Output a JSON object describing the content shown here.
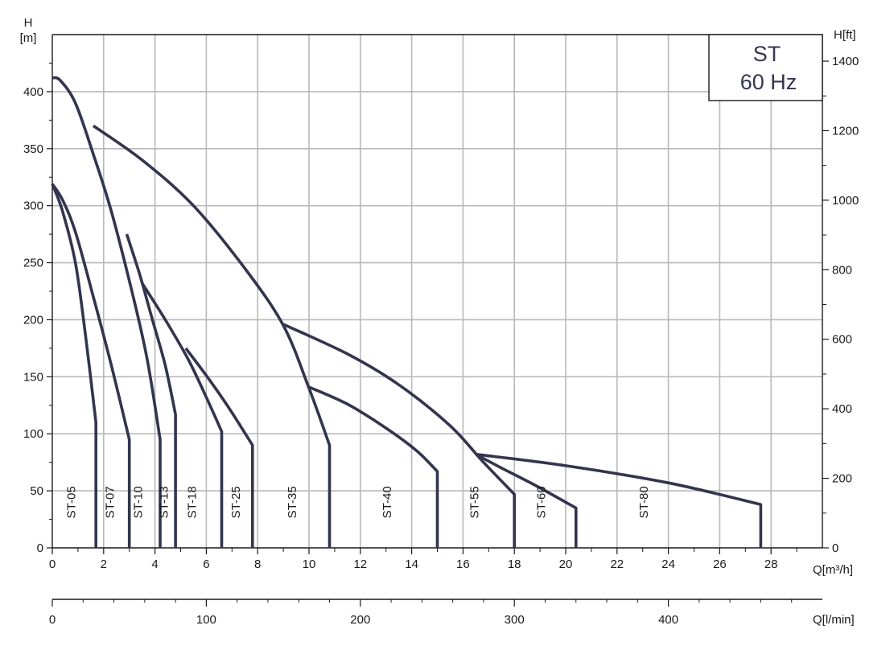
{
  "chart_data": {
    "type": "line",
    "title_box": {
      "line1": "ST",
      "line2": "60 Hz"
    },
    "left_axis": {
      "label_top": "H",
      "label_bottom": "[m]",
      "ticks": [
        0,
        50,
        100,
        150,
        200,
        250,
        300,
        350,
        400
      ],
      "ylim": [
        0,
        450
      ]
    },
    "right_axis": {
      "label": "H[ft]",
      "ticks": [
        0,
        200,
        400,
        600,
        800,
        1000,
        1200,
        1400
      ]
    },
    "x_axis": {
      "label": "Q[m³/h]",
      "ticks": [
        0,
        2,
        4,
        6,
        8,
        10,
        12,
        14,
        16,
        18,
        20,
        22,
        24,
        26,
        28
      ],
      "xlim": [
        0,
        30
      ]
    },
    "secondary_x_axis": {
      "label": "Q[l/min]",
      "ticks": [
        0,
        100,
        200,
        300,
        400
      ],
      "xlim": [
        0,
        500
      ]
    },
    "grid": true,
    "line_color": "#33354f",
    "series": [
      {
        "name": "ST-05",
        "label_x": 0.9,
        "points": [
          [
            0,
            319
          ],
          [
            0.4,
            295
          ],
          [
            0.9,
            250
          ],
          [
            1.3,
            185
          ],
          [
            1.7,
            110
          ],
          [
            1.7,
            0
          ]
        ]
      },
      {
        "name": "ST-07",
        "label_x": 2.4,
        "points": [
          [
            0,
            319
          ],
          [
            0.4,
            305
          ],
          [
            0.9,
            277
          ],
          [
            1.6,
            220
          ],
          [
            2.3,
            160
          ],
          [
            3.0,
            95
          ],
          [
            3.0,
            0
          ]
        ]
      },
      {
        "name": "ST-10",
        "label_x": 3.5,
        "points": [
          [
            0,
            412
          ],
          [
            0.3,
            410
          ],
          [
            0.9,
            390
          ],
          [
            1.6,
            345
          ],
          [
            2.3,
            295
          ],
          [
            3.1,
            225
          ],
          [
            3.7,
            165
          ],
          [
            4.2,
            95
          ],
          [
            4.2,
            0
          ]
        ]
      },
      {
        "name": "ST-13",
        "label_x": 4.5,
        "points": [
          [
            2.9,
            275
          ],
          [
            3.4,
            240
          ],
          [
            3.9,
            200
          ],
          [
            4.4,
            160
          ],
          [
            4.8,
            117
          ],
          [
            4.8,
            0
          ]
        ]
      },
      {
        "name": "ST-18",
        "label_x": 5.6,
        "points": [
          [
            3.5,
            232
          ],
          [
            4.4,
            200
          ],
          [
            5.3,
            165
          ],
          [
            6.0,
            132
          ],
          [
            6.6,
            102
          ],
          [
            6.6,
            0
          ]
        ]
      },
      {
        "name": "ST-25",
        "label_x": 7.3,
        "points": [
          [
            5.2,
            175
          ],
          [
            6.1,
            148
          ],
          [
            6.9,
            122
          ],
          [
            7.8,
            90
          ],
          [
            7.8,
            0
          ]
        ]
      },
      {
        "name": "ST-35",
        "label_x": 9.5,
        "points": [
          [
            1.6,
            370
          ],
          [
            3.5,
            340
          ],
          [
            5.5,
            300
          ],
          [
            7.5,
            245
          ],
          [
            9.0,
            195
          ],
          [
            10.0,
            140
          ],
          [
            10.8,
            90
          ],
          [
            10.8,
            0
          ]
        ]
      },
      {
        "name": "ST-40",
        "label_x": 13.2,
        "points": [
          [
            10.0,
            141
          ],
          [
            11.5,
            126
          ],
          [
            13.0,
            105
          ],
          [
            14.2,
            85
          ],
          [
            15.0,
            67
          ],
          [
            15.0,
            0
          ]
        ]
      },
      {
        "name": "ST-55",
        "label_x": 16.6,
        "points": [
          [
            9.0,
            196
          ],
          [
            11.5,
            170
          ],
          [
            13.5,
            143
          ],
          [
            15.5,
            107
          ],
          [
            16.8,
            75
          ],
          [
            18.0,
            47
          ],
          [
            18.0,
            0
          ]
        ]
      },
      {
        "name": "ST-60",
        "label_x": 19.2,
        "points": [
          [
            16.5,
            82
          ],
          [
            17.5,
            70
          ],
          [
            18.8,
            55
          ],
          [
            20.4,
            35
          ],
          [
            20.4,
            0
          ]
        ]
      },
      {
        "name": "ST-80",
        "label_x": 23.2,
        "points": [
          [
            16.5,
            82
          ],
          [
            20.0,
            72
          ],
          [
            24.0,
            57
          ],
          [
            27.6,
            38
          ],
          [
            27.6,
            0
          ]
        ]
      }
    ]
  }
}
